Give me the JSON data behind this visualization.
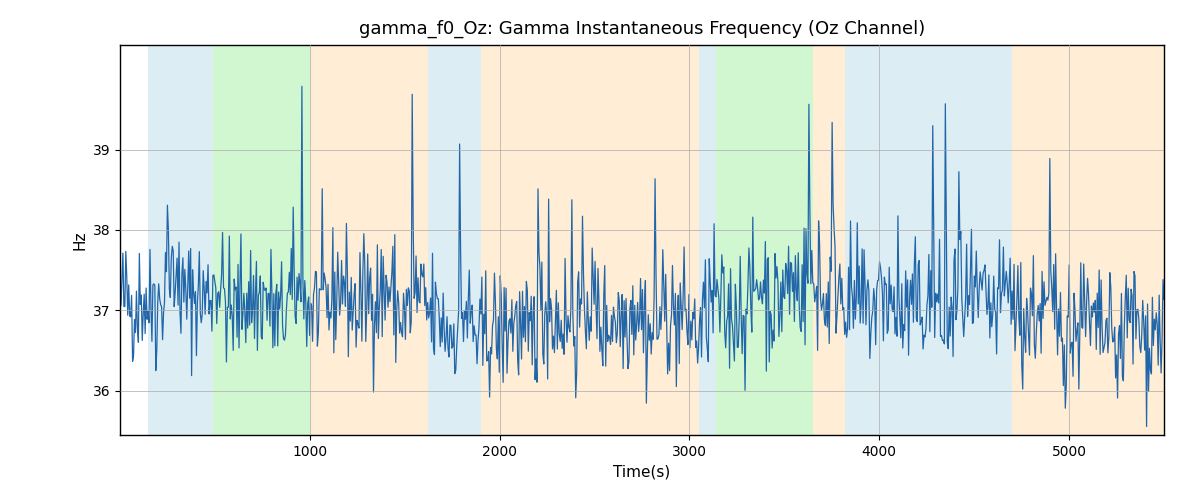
{
  "title": "gamma_f0_Oz: Gamma Instantaneous Frequency (Oz Channel)",
  "xlabel": "Time(s)",
  "ylabel": "Hz",
  "xlim": [
    0,
    5500
  ],
  "ylim": [
    35.45,
    40.3
  ],
  "yticks": [
    36,
    37,
    38,
    39
  ],
  "xticks": [
    1000,
    2000,
    3000,
    4000,
    5000
  ],
  "line_color": "#2266aa",
  "line_width": 0.9,
  "grid_color": "#aaaaaa",
  "bands": [
    {
      "xmin": 150,
      "xmax": 490,
      "color": "#add8e6",
      "alpha": 0.42
    },
    {
      "xmin": 490,
      "xmax": 1000,
      "color": "#90ee90",
      "alpha": 0.42
    },
    {
      "xmin": 1000,
      "xmax": 1620,
      "color": "#ffdead",
      "alpha": 0.5
    },
    {
      "xmin": 1620,
      "xmax": 1900,
      "color": "#add8e6",
      "alpha": 0.42
    },
    {
      "xmin": 1900,
      "xmax": 3050,
      "color": "#ffdead",
      "alpha": 0.5
    },
    {
      "xmin": 3050,
      "xmax": 3140,
      "color": "#add8e6",
      "alpha": 0.42
    },
    {
      "xmin": 3140,
      "xmax": 3650,
      "color": "#90ee90",
      "alpha": 0.42
    },
    {
      "xmin": 3650,
      "xmax": 3820,
      "color": "#ffdead",
      "alpha": 0.5
    },
    {
      "xmin": 3820,
      "xmax": 4700,
      "color": "#add8e6",
      "alpha": 0.42
    },
    {
      "xmin": 4700,
      "xmax": 5500,
      "color": "#ffdead",
      "alpha": 0.5
    }
  ],
  "seed": 42,
  "n_points": 1080,
  "t_start": 0,
  "t_end": 5500,
  "mean_freq": 37.0,
  "noise_scale": 0.38,
  "figsize": [
    12.0,
    5.0
  ],
  "dpi": 100
}
